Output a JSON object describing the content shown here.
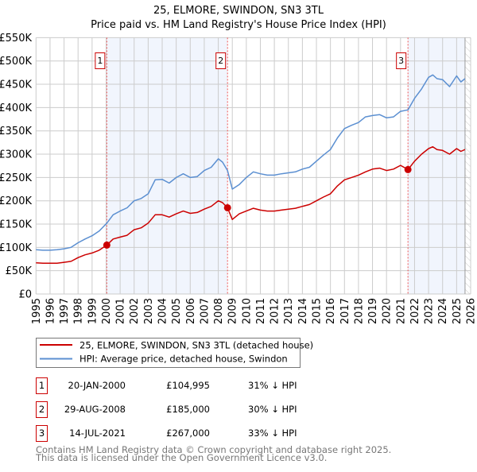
{
  "chart_data": {
    "type": "line",
    "title": "25, ELMORE, SWINDON, SN3 3TL",
    "subtitle": "Price paid vs. HM Land Registry's House Price Index (HPI)",
    "xlim": [
      1995,
      2026
    ],
    "ylim": [
      0,
      550000
    ],
    "grid": true,
    "x_ticks": [
      "1995",
      "1996",
      "1997",
      "1998",
      "1999",
      "2000",
      "2001",
      "2002",
      "2003",
      "2004",
      "2005",
      "2006",
      "2007",
      "2008",
      "2009",
      "2010",
      "2011",
      "2012",
      "2013",
      "2014",
      "2015",
      "2016",
      "2017",
      "2018",
      "2019",
      "2020",
      "2021",
      "2022",
      "2023",
      "2024",
      "2025",
      "2026"
    ],
    "y_ticks": [
      {
        "value": 0,
        "label": "£0"
      },
      {
        "value": 50000,
        "label": "£50K"
      },
      {
        "value": 100000,
        "label": "£100K"
      },
      {
        "value": 150000,
        "label": "£150K"
      },
      {
        "value": 200000,
        "label": "£200K"
      },
      {
        "value": 250000,
        "label": "£250K"
      },
      {
        "value": 300000,
        "label": "£300K"
      },
      {
        "value": 350000,
        "label": "£350K"
      },
      {
        "value": 400000,
        "label": "£400K"
      },
      {
        "value": 450000,
        "label": "£450K"
      },
      {
        "value": 500000,
        "label": "£500K"
      },
      {
        "value": 550000,
        "label": "£550K"
      }
    ],
    "data_end": 2025.6,
    "series": [
      {
        "name": "25, ELMORE, SWINDON, SN3 3TL (detached house)",
        "color": "#cc0000",
        "x": [
          1995,
          1995.5,
          1996,
          1996.5,
          1997,
          1997.5,
          1998,
          1998.5,
          1999,
          1999.5,
          2000.05,
          2000.5,
          2001,
          2001.5,
          2002,
          2002.5,
          2003,
          2003.5,
          2004,
          2004.5,
          2005,
          2005.5,
          2006,
          2006.5,
          2007,
          2007.5,
          2008,
          2008.3,
          2008.66,
          2009,
          2009.5,
          2010,
          2010.5,
          2011,
          2011.5,
          2012,
          2012.5,
          2013,
          2013.5,
          2014,
          2014.5,
          2015,
          2015.5,
          2016,
          2016.5,
          2017,
          2017.5,
          2018,
          2018.5,
          2019,
          2019.5,
          2020,
          2020.5,
          2021,
          2021.53,
          2022,
          2022.5,
          2023,
          2023.3,
          2023.6,
          2024,
          2024.5,
          2025,
          2025.3,
          2025.6
        ],
        "values": [
          67000,
          66000,
          66000,
          66000,
          68000,
          70000,
          78000,
          84000,
          88000,
          94000,
          104995,
          118000,
          122000,
          126000,
          138000,
          142000,
          152000,
          170000,
          170000,
          165000,
          172000,
          178000,
          173000,
          175000,
          182000,
          188000,
          200000,
          196000,
          185000,
          160000,
          172000,
          178000,
          184000,
          180000,
          178000,
          178000,
          180000,
          182000,
          184000,
          188000,
          192000,
          200000,
          208000,
          215000,
          232000,
          245000,
          250000,
          255000,
          262000,
          268000,
          270000,
          265000,
          268000,
          276000,
          267000,
          285000,
          300000,
          312000,
          316000,
          310000,
          308000,
          300000,
          312000,
          306000,
          310000
        ]
      },
      {
        "name": "HPI: Average price, detached house, Swindon",
        "color": "#5b8fd1",
        "x": [
          1995,
          1995.5,
          1996,
          1996.5,
          1997,
          1997.5,
          1998,
          1998.5,
          1999,
          1999.5,
          2000.05,
          2000.5,
          2001,
          2001.5,
          2002,
          2002.5,
          2003,
          2003.5,
          2004,
          2004.5,
          2005,
          2005.5,
          2006,
          2006.5,
          2007,
          2007.5,
          2008,
          2008.3,
          2008.66,
          2009,
          2009.5,
          2010,
          2010.5,
          2011,
          2011.5,
          2012,
          2012.5,
          2013,
          2013.5,
          2014,
          2014.5,
          2015,
          2015.5,
          2016,
          2016.5,
          2017,
          2017.5,
          2018,
          2018.5,
          2019,
          2019.5,
          2020,
          2020.5,
          2021,
          2021.53,
          2022,
          2022.5,
          2023,
          2023.3,
          2023.6,
          2024,
          2024.5,
          2025,
          2025.3,
          2025.6
        ],
        "values": [
          95000,
          94000,
          94000,
          95000,
          97000,
          100000,
          110000,
          118000,
          125000,
          135000,
          152000,
          170000,
          178000,
          185000,
          200000,
          205000,
          215000,
          245000,
          246000,
          238000,
          250000,
          258000,
          250000,
          252000,
          265000,
          272000,
          290000,
          283000,
          265000,
          225000,
          235000,
          250000,
          262000,
          258000,
          255000,
          255000,
          258000,
          260000,
          262000,
          268000,
          272000,
          285000,
          298000,
          310000,
          335000,
          355000,
          362000,
          368000,
          380000,
          383000,
          385000,
          378000,
          380000,
          392000,
          395000,
          420000,
          440000,
          465000,
          470000,
          462000,
          460000,
          445000,
          468000,
          455000,
          462000
        ]
      }
    ],
    "sales": [
      {
        "num": "1",
        "x": 2000.05,
        "value": 104995,
        "date": "20-JAN-2000",
        "price": "£104,995",
        "hpi": "31% ↓ HPI"
      },
      {
        "num": "2",
        "x": 2008.66,
        "value": 185000,
        "date": "29-AUG-2008",
        "price": "£185,000",
        "hpi": "30% ↓ HPI"
      },
      {
        "num": "3",
        "x": 2021.53,
        "value": 267000,
        "date": "14-JUL-2021",
        "price": "£267,000",
        "hpi": "33% ↓ HPI"
      }
    ],
    "legend_placement": "below"
  },
  "footer": {
    "line1": "Contains HM Land Registry data © Crown copyright and database right 2025.",
    "line2": "This data is licensed under the Open Government Licence v3.0."
  }
}
